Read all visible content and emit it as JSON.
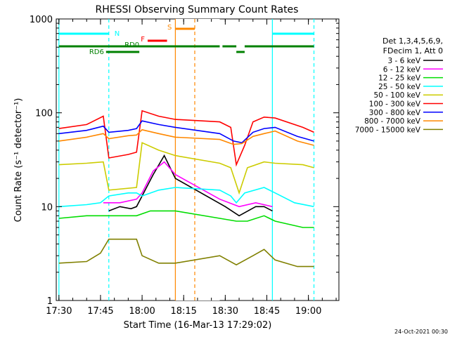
{
  "chart_data": {
    "type": "line",
    "title": "RHESSI Observing Summary Count Rates",
    "xlabel": "Start Time (16-Mar-13 17:29:02)",
    "ylabel": "Count Rate (s⁻¹ detector⁻¹)",
    "y_scale": "log",
    "ylim": [
      1,
      1000
    ],
    "xlim": [
      "17:29:02",
      "19:11:00"
    ],
    "x_ticks": [
      "17:30",
      "17:45",
      "18:00",
      "18:15",
      "18:30",
      "18:45",
      "19:00"
    ],
    "y_ticks": [
      "1",
      "10",
      "100",
      "1000"
    ],
    "legend_header": [
      "Det 1,3,4,5,6,9,",
      "FDecim 1, Att 0"
    ],
    "series": [
      {
        "name": "3 - 6 keV",
        "color": "#000000",
        "points": [
          [
            "17:48",
            9
          ],
          [
            "17:52",
            10
          ],
          [
            "17:56",
            9.5
          ],
          [
            "17:58",
            10
          ],
          [
            "18:00",
            13
          ],
          [
            "18:04",
            22
          ],
          [
            "18:08",
            35
          ],
          [
            "18:12",
            20
          ],
          [
            "18:30",
            10
          ],
          [
            "18:35",
            8
          ],
          [
            "18:41",
            10
          ],
          [
            "18:44",
            10
          ],
          [
            "18:47",
            9
          ]
        ]
      },
      {
        "name": "6 - 12 keV",
        "color": "#ff00ff",
        "points": [
          [
            "17:46",
            11
          ],
          [
            "17:52",
            11
          ],
          [
            "17:58",
            12
          ],
          [
            "18:00",
            14
          ],
          [
            "18:04",
            24
          ],
          [
            "18:08",
            30
          ],
          [
            "18:12",
            22
          ],
          [
            "18:28",
            12
          ],
          [
            "18:35",
            10
          ],
          [
            "18:41",
            11
          ],
          [
            "18:47",
            10
          ]
        ]
      },
      {
        "name": "12 - 25 keV",
        "color": "#00dd00",
        "points": [
          [
            "17:30",
            7.5
          ],
          [
            "17:40",
            8
          ],
          [
            "17:48",
            8
          ],
          [
            "17:58",
            8
          ],
          [
            "18:03",
            9
          ],
          [
            "18:12",
            9
          ],
          [
            "18:28",
            7.5
          ],
          [
            "18:34",
            7
          ],
          [
            "18:38",
            7
          ],
          [
            "18:44",
            8
          ],
          [
            "18:48",
            7
          ],
          [
            "18:58",
            6
          ],
          [
            "19:02",
            6
          ]
        ]
      },
      {
        "name": "25 - 50 keV",
        "color": "#00ffff",
        "points": [
          [
            "17:30",
            10
          ],
          [
            "17:40",
            10.5
          ],
          [
            "17:45",
            11
          ],
          [
            "17:48",
            13
          ],
          [
            "17:55",
            14
          ],
          [
            "17:58",
            14
          ],
          [
            "18:00",
            13
          ],
          [
            "18:06",
            15
          ],
          [
            "18:12",
            16
          ],
          [
            "18:28",
            15
          ],
          [
            "18:32",
            13
          ],
          [
            "18:34",
            11
          ],
          [
            "18:37",
            14
          ],
          [
            "18:44",
            16
          ],
          [
            "18:48",
            14
          ],
          [
            "18:55",
            11
          ],
          [
            "19:02",
            10
          ]
        ]
      },
      {
        "name": "50 - 100 keV",
        "color": "#cccc00",
        "points": [
          [
            "17:30",
            28
          ],
          [
            "17:40",
            29
          ],
          [
            "17:46",
            30
          ],
          [
            "17:48",
            15
          ],
          [
            "17:58",
            16
          ],
          [
            "18:00",
            48
          ],
          [
            "18:06",
            40
          ],
          [
            "18:12",
            35
          ],
          [
            "18:28",
            29
          ],
          [
            "18:32",
            26
          ],
          [
            "18:35",
            14
          ],
          [
            "18:38",
            26
          ],
          [
            "18:44",
            30
          ],
          [
            "18:48",
            29
          ],
          [
            "18:58",
            28
          ],
          [
            "19:02",
            26
          ]
        ]
      },
      {
        "name": "100 - 300 keV",
        "color": "#ff0000",
        "points": [
          [
            "17:30",
            68
          ],
          [
            "17:40",
            75
          ],
          [
            "17:46",
            92
          ],
          [
            "17:48",
            33
          ],
          [
            "17:55",
            36
          ],
          [
            "17:58",
            38
          ],
          [
            "18:00",
            105
          ],
          [
            "18:06",
            92
          ],
          [
            "18:12",
            85
          ],
          [
            "18:28",
            80
          ],
          [
            "18:32",
            70
          ],
          [
            "18:34",
            28
          ],
          [
            "18:37",
            45
          ],
          [
            "18:40",
            80
          ],
          [
            "18:44",
            90
          ],
          [
            "18:48",
            88
          ],
          [
            "18:58",
            70
          ],
          [
            "19:02",
            62
          ]
        ]
      },
      {
        "name": "300 - 800 keV",
        "color": "#0000ff",
        "points": [
          [
            "17:30",
            60
          ],
          [
            "17:40",
            65
          ],
          [
            "17:46",
            72
          ],
          [
            "17:48",
            62
          ],
          [
            "17:55",
            65
          ],
          [
            "17:58",
            68
          ],
          [
            "18:00",
            82
          ],
          [
            "18:06",
            75
          ],
          [
            "18:12",
            70
          ],
          [
            "18:28",
            60
          ],
          [
            "18:33",
            50
          ],
          [
            "18:36",
            48
          ],
          [
            "18:40",
            62
          ],
          [
            "18:44",
            68
          ],
          [
            "18:48",
            70
          ],
          [
            "18:56",
            56
          ],
          [
            "19:02",
            50
          ]
        ]
      },
      {
        "name": "800 - 7000 keV",
        "color": "#ff8800",
        "points": [
          [
            "17:30",
            50
          ],
          [
            "17:40",
            55
          ],
          [
            "17:46",
            60
          ],
          [
            "17:48",
            53
          ],
          [
            "17:55",
            57
          ],
          [
            "17:58",
            58
          ],
          [
            "18:00",
            66
          ],
          [
            "18:06",
            60
          ],
          [
            "18:12",
            55
          ],
          [
            "18:28",
            52
          ],
          [
            "18:33",
            46
          ],
          [
            "18:36",
            47
          ],
          [
            "18:40",
            56
          ],
          [
            "18:44",
            60
          ],
          [
            "18:48",
            64
          ],
          [
            "18:56",
            50
          ],
          [
            "19:02",
            45
          ]
        ]
      },
      {
        "name": "7000 - 15000 keV",
        "color": "#808000",
        "points": [
          [
            "17:30",
            2.5
          ],
          [
            "17:40",
            2.6
          ],
          [
            "17:45",
            3.2
          ],
          [
            "17:48",
            4.5
          ],
          [
            "17:58",
            4.5
          ],
          [
            "18:00",
            3
          ],
          [
            "18:06",
            2.5
          ],
          [
            "18:12",
            2.5
          ],
          [
            "18:28",
            3
          ],
          [
            "18:34",
            2.4
          ],
          [
            "18:40",
            3
          ],
          [
            "18:44",
            3.5
          ],
          [
            "18:48",
            2.7
          ],
          [
            "18:56",
            2.3
          ],
          [
            "19:02",
            2.3
          ]
        ]
      }
    ],
    "annotations": [
      {
        "label": "N",
        "color": "#00ffff",
        "segments": [
          [
            "17:30",
            "17:48"
          ],
          [
            "18:47",
            "19:02"
          ]
        ]
      },
      {
        "label": "RD0",
        "color": "#008000",
        "segments": [
          [
            "17:30",
            "18:28"
          ],
          [
            "18:29",
            "18:34"
          ],
          [
            "18:37",
            "19:02"
          ]
        ]
      },
      {
        "label": "RD6",
        "color": "#008000",
        "segments": [
          [
            "17:47",
            "17:59"
          ],
          [
            "18:34",
            "18:37"
          ]
        ]
      },
      {
        "label": "F",
        "color": "#ff0000",
        "segments": [
          [
            "18:02",
            "18:09"
          ]
        ]
      },
      {
        "label": "S",
        "color": "#ff8800",
        "segments": [
          [
            "18:12",
            "18:19"
          ]
        ]
      }
    ],
    "vertical_markers": [
      {
        "time": "17:30",
        "color": "#00ffff",
        "style": "solid"
      },
      {
        "time": "17:48",
        "color": "#00ffff",
        "style": "dashed"
      },
      {
        "time": "18:47",
        "color": "#00ffff",
        "style": "solid"
      },
      {
        "time": "19:02",
        "color": "#00ffff",
        "style": "dashed"
      },
      {
        "time": "18:12",
        "color": "#ff8800",
        "style": "solid"
      },
      {
        "time": "18:19",
        "color": "#ff8800",
        "style": "dashed"
      }
    ],
    "data_gap": [
      "18:12",
      "18:28"
    ],
    "timestamp": "24-Oct-2021 00:30"
  }
}
